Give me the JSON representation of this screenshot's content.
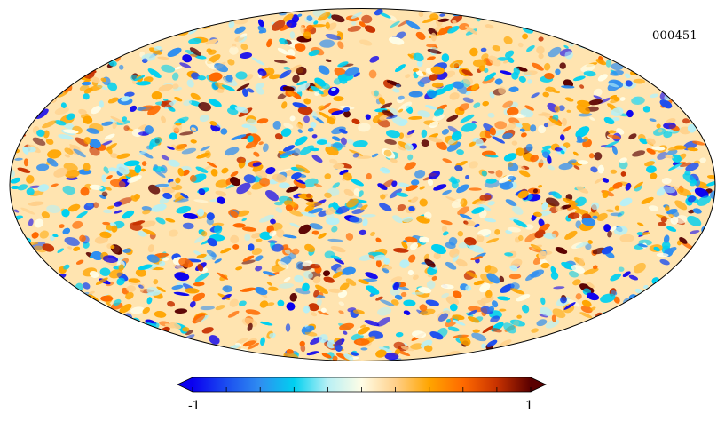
{
  "map": {
    "id_label": "000451",
    "projection": "mollweide",
    "field_seed": 451
  },
  "colorbar": {
    "min_label": "-1",
    "max_label": "1",
    "min": -1,
    "max": 1,
    "tick_count": 11,
    "colors": [
      "#0a00f0",
      "#1b4df0",
      "#2f8ef0",
      "#00d0f0",
      "#b8f0f5",
      "#fffde6",
      "#ffd08a",
      "#ffa500",
      "#ff6a00",
      "#c83200",
      "#5a0000"
    ]
  }
}
